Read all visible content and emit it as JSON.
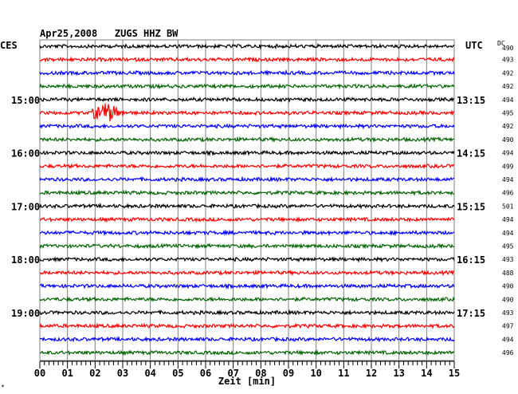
{
  "header": {
    "title": "Apr25,2008   ZUGS HHZ BW",
    "left_tz": "CES",
    "right_tz": "UTC",
    "dc_label": "DC"
  },
  "footer": {
    "xlabel": "Zeit [min]",
    "corner_mark": "*"
  },
  "chart_data": {
    "type": "line",
    "title": "Apr25,2008   ZUGS HHZ BW",
    "xlabel": "Zeit [min]",
    "xlim": [
      0,
      15
    ],
    "x_ticks": [
      "00",
      "01",
      "02",
      "03",
      "04",
      "05",
      "06",
      "07",
      "08",
      "09",
      "10",
      "11",
      "12",
      "13",
      "14",
      "15"
    ],
    "grid": true,
    "trace_interval_min": 15,
    "colors_cycle": [
      "#000000",
      "#ff0000",
      "#0000ff",
      "#006400"
    ],
    "left_labels": [
      {
        "trace": 4,
        "text": "15:00"
      },
      {
        "trace": 8,
        "text": "16:00"
      },
      {
        "trace": 12,
        "text": "17:00"
      },
      {
        "trace": 16,
        "text": "18:00"
      },
      {
        "trace": 20,
        "text": "19:00"
      }
    ],
    "right_labels": [
      {
        "trace": 4,
        "text": "13:15"
      },
      {
        "trace": 8,
        "text": "14:15"
      },
      {
        "trace": 12,
        "text": "15:15"
      },
      {
        "trace": 16,
        "text": "16:15"
      },
      {
        "trace": 20,
        "text": "17:15"
      }
    ],
    "dc_offsets": [
      490,
      493,
      492,
      492,
      494,
      495,
      492,
      490,
      494,
      499,
      494,
      496,
      501,
      494,
      494,
      495,
      493,
      488,
      490,
      490,
      493,
      497,
      494,
      496
    ],
    "events": [
      {
        "trace": 5,
        "start_min": 1.9,
        "end_min": 3.2,
        "peak_min": 2.4
      }
    ]
  }
}
